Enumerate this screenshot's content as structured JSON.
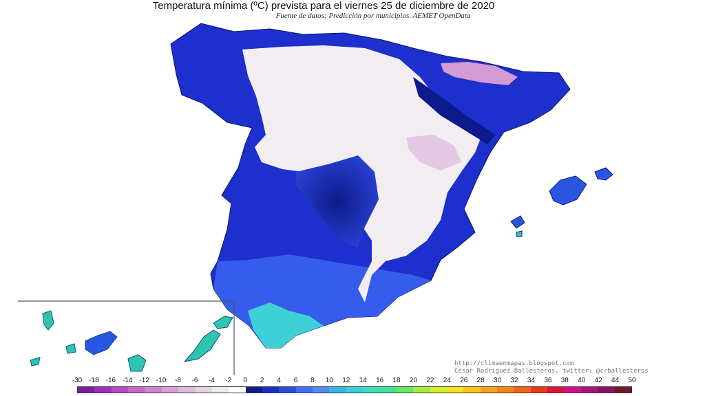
{
  "header": {
    "title": "Temperatura mínima (ºC) prevista para el viernes 25 de diciembre de 2020",
    "subtitle": "Fuente de datos: Predicción por municipios. AEMET OpenData"
  },
  "credits": {
    "blog": "http://climaenmapas.blogspot.com",
    "author": "César Rodríguez Ballesteros, twitter: @crballesteros"
  },
  "legend": {
    "ticks": [
      "-30",
      "-18",
      "-16",
      "-14",
      "-12",
      "-10",
      "-8",
      "-6",
      "-4",
      "-2",
      "0",
      "2",
      "4",
      "6",
      "8",
      "10",
      "12",
      "14",
      "16",
      "18",
      "20",
      "22",
      "24",
      "26",
      "28",
      "30",
      "32",
      "34",
      "36",
      "38",
      "40",
      "42",
      "44",
      "50"
    ],
    "colors": [
      "#7a1fa2",
      "#9b2fbf",
      "#b34bc8",
      "#c467c9",
      "#cf86cf",
      "#d6a2d6",
      "#dbbddb",
      "#e6d4e6",
      "#f0e8f0",
      "#ffffff",
      "#101b8a",
      "#1a2fc2",
      "#2a4be0",
      "#3f6ef2",
      "#4f8cf5",
      "#39b6e8",
      "#36d0d9",
      "#38e0c0",
      "#3fe39a",
      "#66e860",
      "#a7ee3a",
      "#d8f02a",
      "#f4e21f",
      "#f8c51a",
      "#f8a318",
      "#f78516",
      "#f56414",
      "#ee3a14",
      "#e0123a",
      "#d3108a",
      "#b0127a",
      "#8a1360",
      "#6e1a28"
    ],
    "unit_marker": "·"
  },
  "map": {
    "regions": [
      {
        "name": "iberian-peninsula-coast-cold",
        "color": "#2233cc"
      },
      {
        "name": "interior-below-zero",
        "color": "#f2eef2"
      },
      {
        "name": "pyrenees-cold",
        "color": "#c98fc9"
      },
      {
        "name": "andalusia-coast-mild",
        "color": "#3ed0d6"
      },
      {
        "name": "canary-islands",
        "color": "#2ec4b0"
      },
      {
        "name": "balearic-islands",
        "color": "#2a55e0"
      }
    ]
  }
}
